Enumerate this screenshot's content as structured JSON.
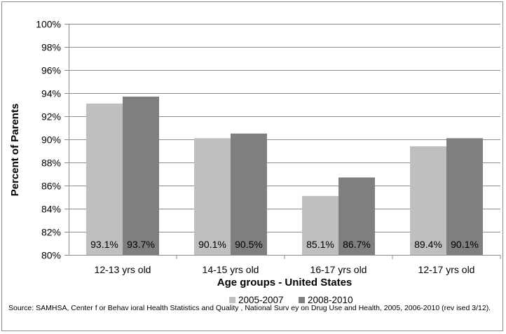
{
  "chart_data": {
    "type": "bar",
    "categories": [
      "12-13 yrs old",
      "14-15 yrs old",
      "16-17 yrs old",
      "12-17 yrs old"
    ],
    "series": [
      {
        "name": "2005-2007",
        "values": [
          93.1,
          90.1,
          85.1,
          89.4
        ],
        "labels": [
          "93.1%",
          "90.1%",
          "85.1%",
          "89.4%"
        ],
        "color": "#bfbfbf"
      },
      {
        "name": "2008-2010",
        "values": [
          93.7,
          90.5,
          86.7,
          90.1
        ],
        "labels": [
          "93.7%",
          "90.5%",
          "86.7%",
          "90.1%"
        ],
        "color": "#7f7f7f"
      }
    ],
    "ylabel": "Percent of Parents",
    "xlabel": "Age groups - United States",
    "ylim": [
      80,
      100
    ],
    "yticks": [
      80,
      82,
      84,
      86,
      88,
      90,
      92,
      94,
      96,
      98,
      100
    ],
    "ytick_labels": [
      "80%",
      "82%",
      "84%",
      "86%",
      "88%",
      "90%",
      "92%",
      "94%",
      "96%",
      "98%",
      "100%"
    ],
    "grid": true,
    "legend_position": "bottom",
    "gridline_color": "#8c8c8c"
  },
  "source_text": "Source:  SAMHSA,  Center f or Behav ioral Health Statistics and Quality , National Surv ey on Drug Use and Health, 2005, 2006-2010  (rev ised 3/12)."
}
